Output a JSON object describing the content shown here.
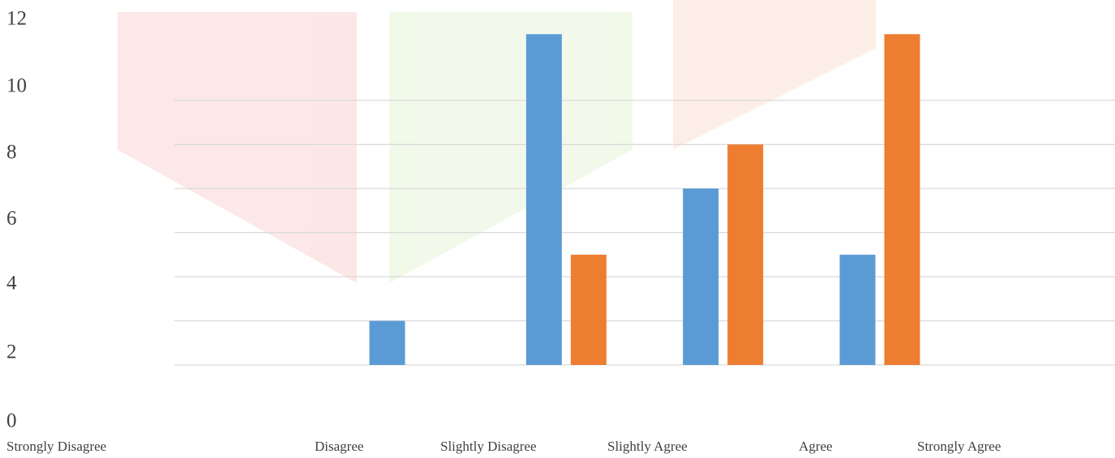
{
  "chart_data": {
    "type": "bar",
    "categories": [
      "Strongly Disagree",
      "Disagree",
      "Slightly Disagree",
      "Slightly Agree",
      "Agree",
      "Strongly Agree"
    ],
    "series": [
      {
        "color": "#5b9bd5",
        "values": [
          0,
          2,
          15,
          8,
          5,
          0
        ]
      },
      {
        "color": "#ed7d31",
        "values": [
          0,
          0,
          5,
          10,
          15,
          0
        ]
      }
    ],
    "ylim": [
      0,
      15
    ],
    "yticks": [
      0,
      2,
      4,
      6,
      8,
      10,
      12
    ],
    "grid": true
  }
}
